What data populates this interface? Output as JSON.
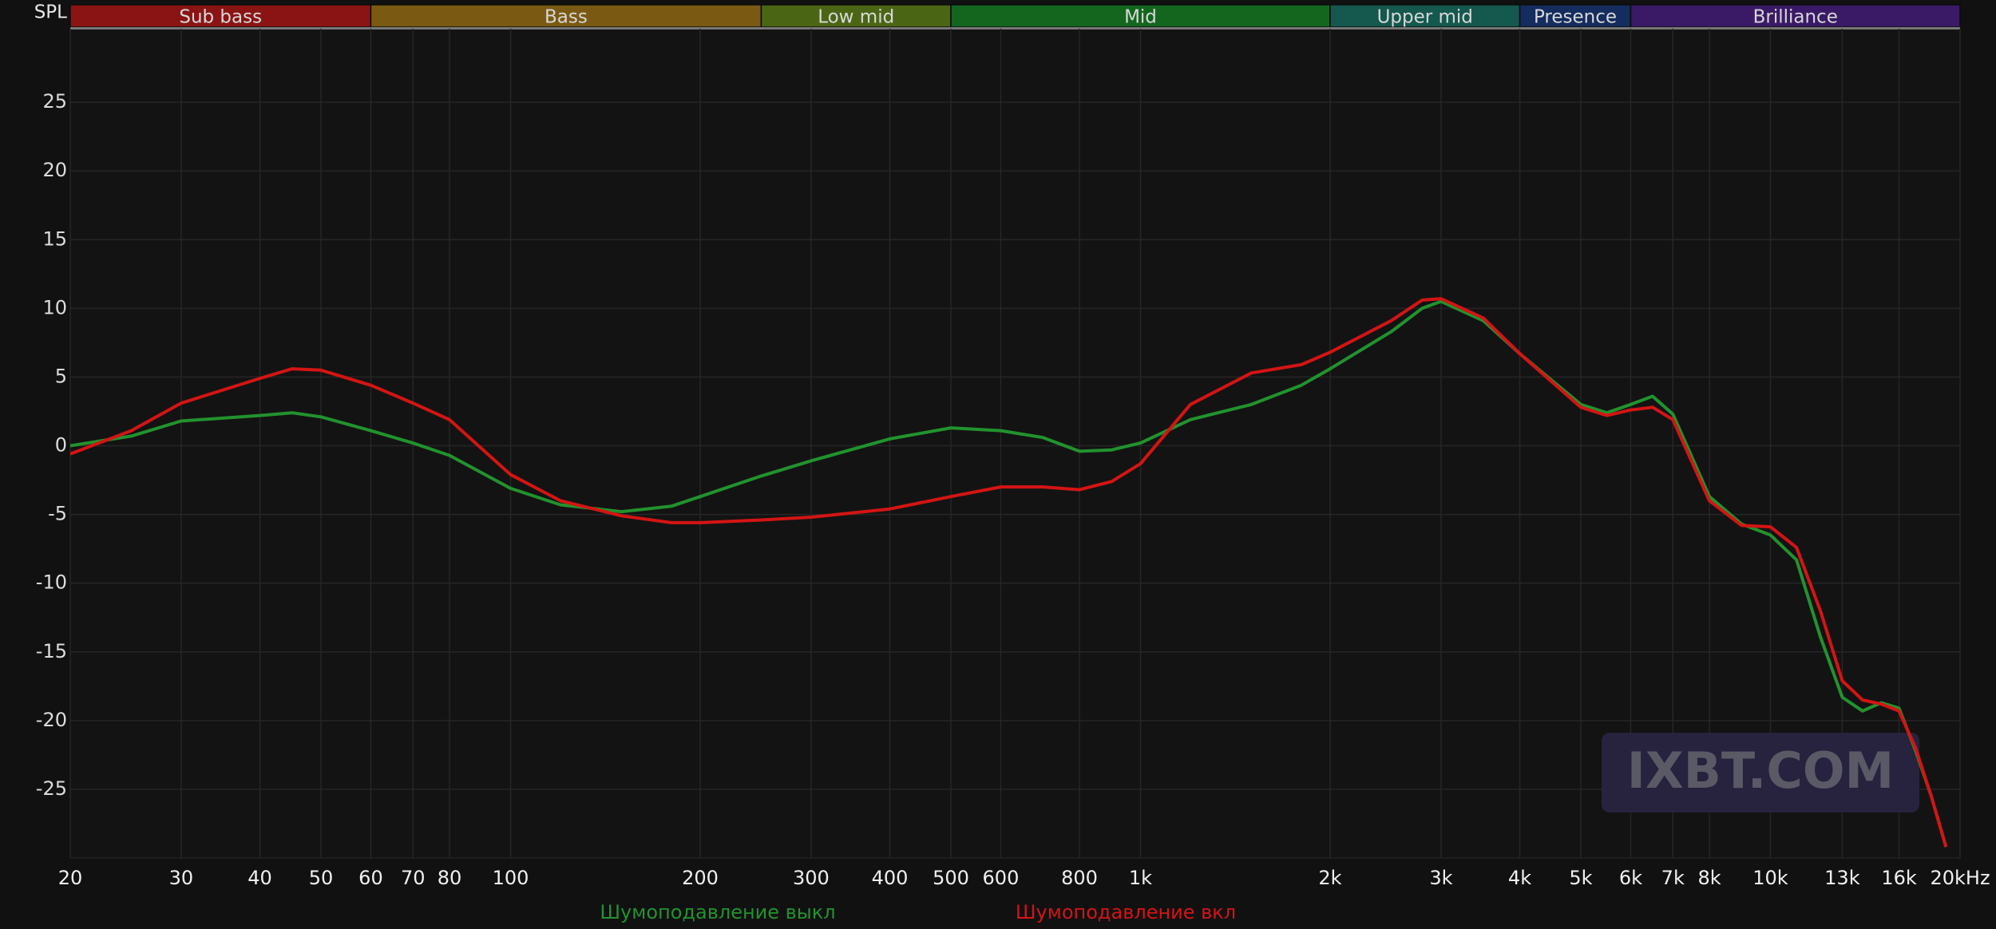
{
  "chart_data": {
    "type": "line",
    "ylabel": "SPL",
    "xscale": "log",
    "grid": true,
    "xlim": [
      20,
      20000
    ],
    "ylim": [
      -30,
      30
    ],
    "xticks": [
      20,
      30,
      40,
      50,
      60,
      70,
      80,
      100,
      200,
      300,
      400,
      500,
      600,
      800,
      {
        "value": 1000,
        "label": "1k"
      },
      {
        "value": 2000,
        "label": "2k"
      },
      {
        "value": 3000,
        "label": "3k"
      },
      {
        "value": 4000,
        "label": "4k"
      },
      {
        "value": 5000,
        "label": "5k"
      },
      {
        "value": 6000,
        "label": "6k"
      },
      {
        "value": 7000,
        "label": "7k"
      },
      {
        "value": 8000,
        "label": "8k"
      },
      {
        "value": 10000,
        "label": "10k"
      },
      {
        "value": 13000,
        "label": "13k"
      },
      {
        "value": 16000,
        "label": "16k"
      },
      {
        "value": 20000,
        "label": "20kHz"
      }
    ],
    "yticks": [
      25,
      20,
      15,
      10,
      5,
      0,
      -5,
      -10,
      -15,
      -20,
      -25
    ],
    "bands": [
      {
        "name": "Sub bass",
        "start": 20,
        "end": 60,
        "color": "#8a1414"
      },
      {
        "name": "Bass",
        "start": 60,
        "end": 250,
        "color": "#7a5a12"
      },
      {
        "name": "Low mid",
        "start": 250,
        "end": 500,
        "color": "#4a6614"
      },
      {
        "name": "Mid",
        "start": 500,
        "end": 2000,
        "color": "#14661e"
      },
      {
        "name": "Upper mid",
        "start": 2000,
        "end": 4000,
        "color": "#14584e"
      },
      {
        "name": "Presence",
        "start": 4000,
        "end": 6000,
        "color": "#142c5e"
      },
      {
        "name": "Brilliance",
        "start": 6000,
        "end": 20000,
        "color": "#3a1a66"
      }
    ],
    "watermark": "IXBT.COM",
    "x": [
      20,
      25,
      30,
      40,
      45,
      50,
      60,
      70,
      80,
      100,
      120,
      150,
      180,
      200,
      250,
      300,
      400,
      500,
      600,
      700,
      800,
      900,
      1000,
      1200,
      1500,
      1800,
      2000,
      2500,
      2800,
      3000,
      3500,
      4000,
      5000,
      5500,
      6000,
      6500,
      7000,
      8000,
      9000,
      10000,
      11000,
      12000,
      13000,
      14000,
      15000,
      16000,
      17000,
      18000,
      19000
    ],
    "series": [
      {
        "name": "Шумоподавление выкл",
        "color": "#22922e",
        "values": [
          0,
          0.7,
          1.8,
          2.2,
          2.4,
          2.1,
          1.1,
          0.2,
          -0.7,
          -3.1,
          -4.3,
          -4.8,
          -4.4,
          -3.7,
          -2.2,
          -1.1,
          0.5,
          1.3,
          1.1,
          0.6,
          -0.4,
          -0.3,
          0.2,
          1.9,
          3.0,
          4.4,
          5.6,
          8.3,
          10.0,
          10.5,
          9.1,
          6.7,
          3.0,
          2.4,
          3.0,
          3.6,
          2.3,
          -3.7,
          -5.7,
          -6.5,
          -8.3,
          -13.9,
          -18.3,
          -19.3,
          -18.7,
          -19.1,
          -22.2,
          -25.5,
          -29.2
        ]
      },
      {
        "name": "Шумоподавление вкл",
        "color": "#d41414",
        "values": [
          -0.6,
          1.1,
          3.1,
          4.9,
          5.6,
          5.5,
          4.4,
          3.1,
          1.9,
          -2.1,
          -4.0,
          -5.1,
          -5.6,
          -5.6,
          -5.4,
          -5.2,
          -4.6,
          -3.7,
          -3.0,
          -3.0,
          -3.2,
          -2.6,
          -1.3,
          3.0,
          5.3,
          5.9,
          6.8,
          9.1,
          10.6,
          10.7,
          9.3,
          6.7,
          2.8,
          2.2,
          2.6,
          2.8,
          1.9,
          -4.0,
          -5.8,
          -5.9,
          -7.4,
          -12.0,
          -17.1,
          -18.5,
          -18.8,
          -19.3,
          -22.0,
          -25.5,
          -29.2
        ]
      }
    ]
  }
}
